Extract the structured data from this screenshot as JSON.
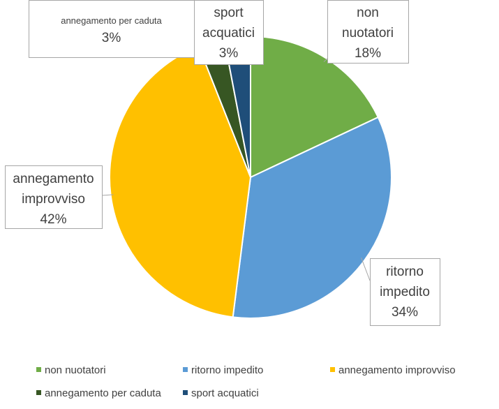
{
  "chart_data": {
    "type": "pie",
    "categories": [
      "non nuotatori",
      "ritorno impedito",
      "annegamento improvviso",
      "annegamento per caduta",
      "sport acquatici"
    ],
    "values": [
      18,
      34,
      42,
      3,
      3
    ],
    "colors": [
      "#70AD47",
      "#5B9BD5",
      "#FFC000",
      "#375623",
      "#1F4E79"
    ],
    "data_labels": [
      {
        "lines": [
          "non",
          "nuotatori"
        ],
        "percent": "18%"
      },
      {
        "lines": [
          "ritorno",
          "impedito"
        ],
        "percent": "34%"
      },
      {
        "lines": [
          "annegamento",
          "improvviso"
        ],
        "percent": "42%"
      },
      {
        "lines": [
          "annegamento per caduta"
        ],
        "percent": "3%"
      },
      {
        "lines": [
          "sport",
          "acquatici"
        ],
        "percent": "3%"
      }
    ],
    "legend": {
      "placement": "bottom",
      "entries": [
        "non nuotatori",
        "ritorno impedito",
        "annegamento improvviso",
        "annegamento per caduta",
        "sport acquatici"
      ]
    }
  }
}
